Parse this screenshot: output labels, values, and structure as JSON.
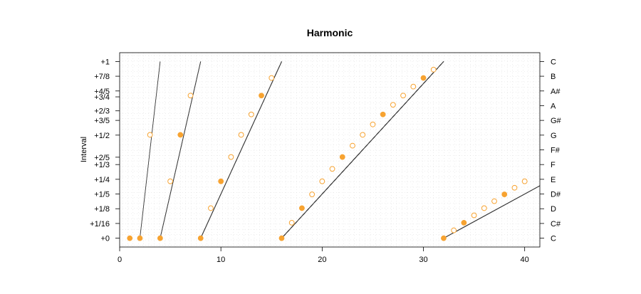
{
  "chart_data": {
    "type": "scatter",
    "title": "Harmonic",
    "xlabel": "",
    "ylabel": "Interval",
    "xlim": [
      0,
      41.5
    ],
    "ylim": [
      -0.05,
      1.05
    ],
    "x_ticks": [
      0,
      10,
      20,
      30,
      40
    ],
    "y_ticks": [
      {
        "label": "+0",
        "value": 0
      },
      {
        "label": "+1/16",
        "value": 0.0833
      },
      {
        "label": "+1/8",
        "value": 0.1667
      },
      {
        "label": "+1/5",
        "value": 0.25
      },
      {
        "label": "+1/4",
        "value": 0.3333
      },
      {
        "label": "+1/3",
        "value": 0.4167
      },
      {
        "label": "+2/5",
        "value": 0.4583
      },
      {
        "label": "+1/2",
        "value": 0.5833
      },
      {
        "label": "+3/5",
        "value": 0.6667
      },
      {
        "label": "+2/3",
        "value": 0.7208
      },
      {
        "label": "+3/4",
        "value": 0.8
      },
      {
        "label": "+4/5",
        "value": 0.8333
      },
      {
        "label": "+7/8",
        "value": 0.9167
      },
      {
        "label": "+1",
        "value": 1
      }
    ],
    "right_labels": [
      "C",
      "C#",
      "D",
      "D#",
      "E",
      "F",
      "F#",
      "G",
      "G#",
      "A",
      "A#",
      "B",
      "C"
    ],
    "right_label_values": [
      0,
      0.0833,
      0.1667,
      0.25,
      0.3333,
      0.4167,
      0.5,
      0.5833,
      0.6667,
      0.75,
      0.8333,
      0.9167,
      1
    ],
    "harmonics": {
      "first": 1,
      "last": 40
    },
    "grid": true,
    "colors": {
      "accent": "#f7a331",
      "line": "#404040",
      "open_marker_fill": "#ffffff",
      "frame": "#000000",
      "grid": "#d9d9d9"
    }
  }
}
